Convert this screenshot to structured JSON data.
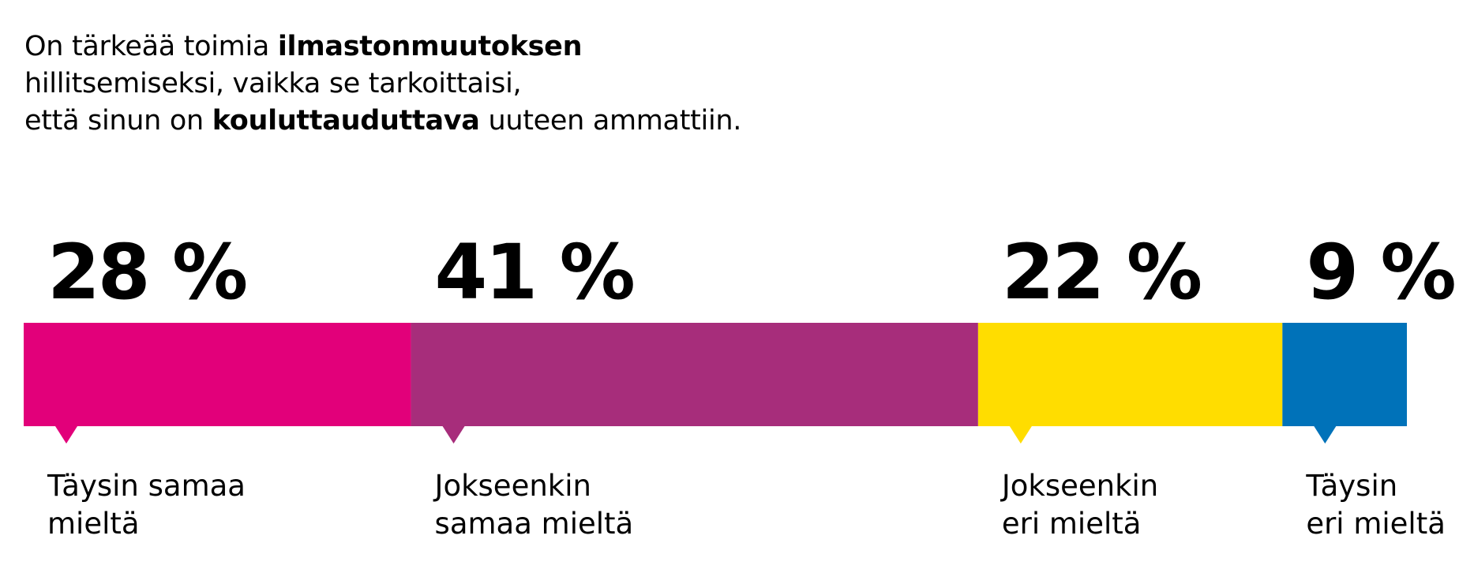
{
  "title": {
    "line1_a": "On tärkeää toimia ",
    "line1_b": "ilmastonmuutoksen",
    "line2": "hillitsemiseksi, vaikka se tarkoittaisi,",
    "line3_a": "että sinun on ",
    "line3_b": "kouluttauduttava",
    "line3_c": " uuteen ammattiin."
  },
  "chart_data": {
    "type": "bar",
    "orientation": "horizontal-stacked",
    "categories": [
      "Täysin samaa mieltä",
      "Jokseenkin samaa mieltä",
      "Jokseenkin eri mieltä",
      "Täysin eri mieltä"
    ],
    "label_lines": [
      [
        "Täysin samaa",
        "mieltä"
      ],
      [
        "Jokseenkin",
        "samaa mieltä"
      ],
      [
        "Jokseenkin",
        "eri mieltä"
      ],
      [
        "Täysin",
        "eri mieltä"
      ]
    ],
    "values": [
      28,
      41,
      22,
      9
    ],
    "value_labels": [
      "28 %",
      "41 %",
      "22 %",
      "9 %"
    ],
    "unit": "%",
    "colors": [
      "#e2007a",
      "#a72d7b",
      "#ffdd00",
      "#0072b9"
    ]
  }
}
